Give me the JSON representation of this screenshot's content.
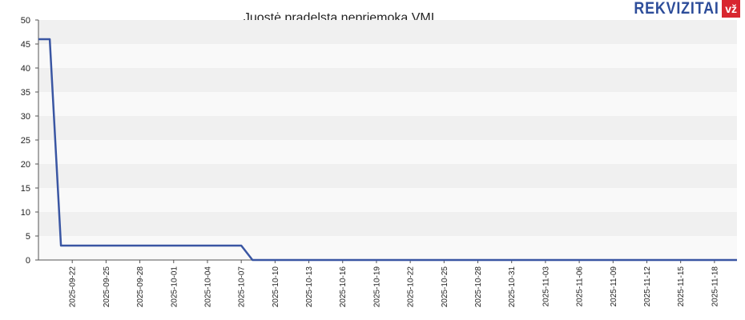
{
  "logo": {
    "word": "REKVIZITAI",
    "tag": "vž"
  },
  "colors": {
    "band_light": "#f0f0f0",
    "band_lighter": "#f9f9f9",
    "line": "#3a56a3"
  },
  "chart_data": {
    "type": "line",
    "title": "Juostė pradelsta nepriemoka VMI",
    "xlabel": "",
    "ylabel": "",
    "ylim": [
      0,
      50
    ],
    "yticks": [
      0,
      5,
      10,
      15,
      20,
      25,
      30,
      35,
      40,
      45,
      50
    ],
    "x_range": [
      "2025-09-19",
      "2025-11-20"
    ],
    "xticks": [
      "2025-09-22",
      "2025-09-25",
      "2025-09-28",
      "2025-10-01",
      "2025-10-04",
      "2025-10-07",
      "2025-10-10",
      "2025-10-13",
      "2025-10-16",
      "2025-10-19",
      "2025-10-22",
      "2025-10-25",
      "2025-10-28",
      "2025-10-31",
      "2025-11-03",
      "2025-11-06",
      "2025-11-09",
      "2025-11-12",
      "2025-11-15",
      "2025-11-18"
    ],
    "grid": "alternating horizontal bands",
    "series": [
      {
        "color": "#3a56a3",
        "points": [
          [
            "2025-09-19",
            46
          ],
          [
            "2025-09-20",
            46
          ],
          [
            "2025-09-21",
            3
          ],
          [
            "2025-10-07",
            3
          ],
          [
            "2025-10-08",
            0
          ],
          [
            "2025-11-20",
            0
          ]
        ]
      }
    ]
  }
}
